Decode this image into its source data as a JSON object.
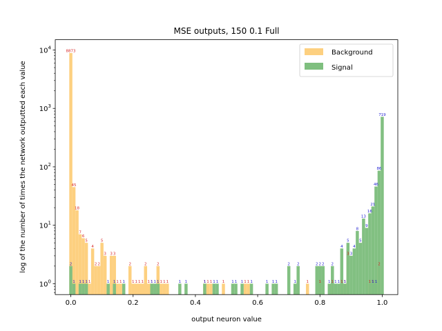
{
  "chart_data": {
    "type": "bar",
    "title": "MSE outputs, 150 0.1 Full",
    "xlabel": "output neuron value",
    "ylabel": "log of the number of times the network outputted each value",
    "yscale": "log",
    "xlim": [
      -0.05,
      1.05
    ],
    "ylim": [
      0.65,
      15000
    ],
    "bin_width": 0.01,
    "x_ticks": [
      "0.0",
      "0.2",
      "0.4",
      "0.6",
      "0.8",
      "1.0"
    ],
    "y_ticks": [
      "10^0",
      "10^1",
      "10^2",
      "10^3",
      "10^4"
    ],
    "legend_position": "top-right",
    "colors": {
      "Background": "#fdd080",
      "Signal": "#7fbf7f",
      "background_label": "#d62728",
      "signal_label": "#1f1fd0"
    },
    "series": [
      {
        "name": "Background",
        "bins": [
          [
            0.0,
            8873
          ],
          [
            0.01,
            45
          ],
          [
            0.02,
            18
          ],
          [
            0.03,
            7
          ],
          [
            0.04,
            6
          ],
          [
            0.05,
            5
          ],
          [
            0.07,
            4
          ],
          [
            0.08,
            2
          ],
          [
            0.09,
            2
          ],
          [
            0.1,
            5
          ],
          [
            0.11,
            3
          ],
          [
            0.13,
            3
          ],
          [
            0.14,
            3
          ],
          [
            0.19,
            2
          ],
          [
            0.24,
            2
          ],
          [
            0.28,
            2
          ],
          [
            0.06,
            1
          ],
          [
            0.15,
            1
          ],
          [
            0.16,
            1
          ],
          [
            0.2,
            1
          ],
          [
            0.21,
            1
          ],
          [
            0.22,
            1
          ],
          [
            0.23,
            1
          ],
          [
            0.25,
            1
          ],
          [
            0.26,
            1
          ],
          [
            0.29,
            1
          ],
          [
            0.3,
            1
          ],
          [
            0.31,
            1
          ],
          [
            0.43,
            1
          ],
          [
            0.44,
            1
          ],
          [
            0.45,
            1
          ],
          [
            0.49,
            1
          ],
          [
            0.56,
            1
          ],
          [
            0.57,
            1
          ],
          [
            0.76,
            1
          ],
          [
            0.8,
            1
          ],
          [
            0.84,
            1
          ],
          [
            0.87,
            1
          ],
          [
            0.88,
            1
          ],
          [
            0.89,
            3
          ],
          [
            0.96,
            1
          ],
          [
            0.97,
            1
          ],
          [
            0.99,
            2
          ]
        ]
      },
      {
        "name": "Signal",
        "bins": [
          [
            0.0,
            2
          ],
          [
            0.01,
            1
          ],
          [
            0.03,
            1
          ],
          [
            0.04,
            1
          ],
          [
            0.05,
            1
          ],
          [
            0.12,
            1
          ],
          [
            0.14,
            1
          ],
          [
            0.17,
            1
          ],
          [
            0.26,
            1
          ],
          [
            0.27,
            1
          ],
          [
            0.28,
            1
          ],
          [
            0.35,
            1
          ],
          [
            0.37,
            1
          ],
          [
            0.43,
            1
          ],
          [
            0.46,
            1
          ],
          [
            0.47,
            1
          ],
          [
            0.52,
            1
          ],
          [
            0.53,
            1
          ],
          [
            0.55,
            1
          ],
          [
            0.58,
            1
          ],
          [
            0.63,
            1
          ],
          [
            0.65,
            1
          ],
          [
            0.66,
            1
          ],
          [
            0.7,
            2
          ],
          [
            0.72,
            1
          ],
          [
            0.73,
            2
          ],
          [
            0.79,
            2
          ],
          [
            0.8,
            2
          ],
          [
            0.81,
            2
          ],
          [
            0.83,
            1
          ],
          [
            0.84,
            2
          ],
          [
            0.85,
            1
          ],
          [
            0.86,
            1
          ],
          [
            0.87,
            4
          ],
          [
            0.88,
            1
          ],
          [
            0.89,
            5
          ],
          [
            0.9,
            3
          ],
          [
            0.91,
            4
          ],
          [
            0.92,
            8
          ],
          [
            0.93,
            5
          ],
          [
            0.94,
            13
          ],
          [
            0.95,
            9
          ],
          [
            0.96,
            16
          ],
          [
            0.97,
            21
          ],
          [
            0.98,
            46
          ],
          [
            0.99,
            86
          ],
          [
            1.0,
            719
          ],
          [
            0.97,
            1
          ],
          [
            0.98,
            1
          ]
        ]
      }
    ]
  }
}
